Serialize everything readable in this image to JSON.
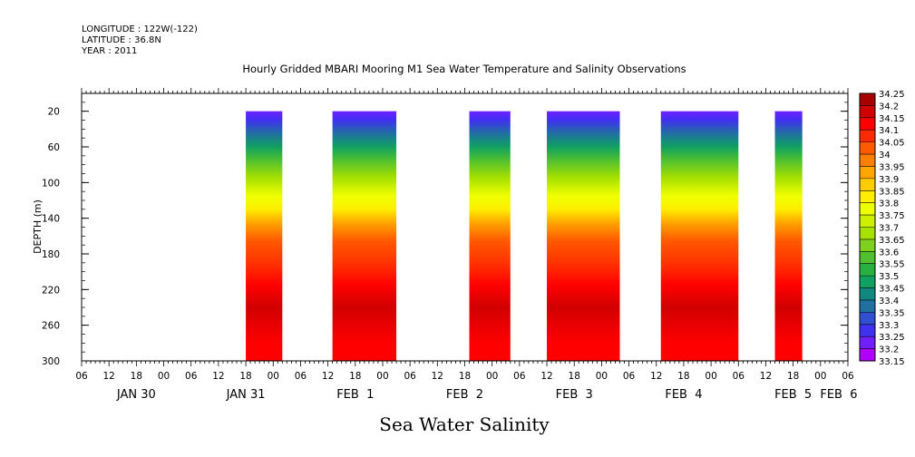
{
  "header": {
    "longitude": "LONGITUDE : 122W(-122)",
    "latitude": "LATITUDE : 36.8N",
    "year": "YEAR : 2011"
  },
  "chart_data": {
    "type": "heatmap",
    "title": "Hourly Gridded MBARI Mooring M1 Sea Water Temperature and Salinity Observations",
    "xlabel": "Sea Water Salinity",
    "ylabel": "DEPTH (m)",
    "x_range_hours": [
      0,
      168
    ],
    "ylim": [
      300,
      0
    ],
    "y_ticks": [
      20,
      60,
      100,
      140,
      180,
      220,
      260,
      300
    ],
    "hour_ticks": [
      "06",
      "12",
      "18",
      "00",
      "06",
      "12",
      "18",
      "00",
      "06",
      "12",
      "18",
      "00",
      "06",
      "12",
      "18",
      "00",
      "06",
      "12",
      "18",
      "00",
      "06",
      "12",
      "18",
      "00",
      "06",
      "12",
      "18",
      "00",
      "06"
    ],
    "date_labels": [
      {
        "label": "JAN 30",
        "hour": 12
      },
      {
        "label": "JAN 31",
        "hour": 36
      },
      {
        "label": "FEB  1",
        "hour": 60
      },
      {
        "label": "FEB  2",
        "hour": 84
      },
      {
        "label": "FEB  3",
        "hour": 108
      },
      {
        "label": "FEB  4",
        "hour": 132
      },
      {
        "label": "FEB  5",
        "hour": 156
      },
      {
        "label": "FEB  6",
        "hour": 166
      }
    ],
    "data_blocks_hours": [
      [
        36,
        44
      ],
      [
        55,
        69
      ],
      [
        85,
        94
      ],
      [
        102,
        118
      ],
      [
        127,
        144
      ],
      [
        152,
        158
      ]
    ],
    "profile": [
      {
        "depth": 20,
        "value": 33.25
      },
      {
        "depth": 30,
        "value": 33.3
      },
      {
        "depth": 45,
        "value": 33.4
      },
      {
        "depth": 60,
        "value": 33.5
      },
      {
        "depth": 75,
        "value": 33.6
      },
      {
        "depth": 95,
        "value": 33.7
      },
      {
        "depth": 115,
        "value": 33.8
      },
      {
        "depth": 130,
        "value": 33.85
      },
      {
        "depth": 145,
        "value": 33.95
      },
      {
        "depth": 165,
        "value": 34.05
      },
      {
        "depth": 195,
        "value": 34.1
      },
      {
        "depth": 215,
        "value": 34.15
      },
      {
        "depth": 240,
        "value": 34.2
      },
      {
        "depth": 280,
        "value": 34.15
      },
      {
        "depth": 300,
        "value": 34.15
      }
    ],
    "colorbar": {
      "labels": [
        "34.25",
        "34.2",
        "34.15",
        "34.1",
        "34.05",
        "34",
        "33.95",
        "33.9",
        "33.85",
        "33.8",
        "33.75",
        "33.7",
        "33.65",
        "33.6",
        "33.55",
        "33.5",
        "33.45",
        "33.4",
        "33.35",
        "33.3",
        "33.25",
        "33.2",
        "33.15"
      ],
      "colors": [
        "#a80000",
        "#d10000",
        "#ff0000",
        "#ff2a00",
        "#ff5a00",
        "#ff8000",
        "#ffa500",
        "#ffcc00",
        "#ffee00",
        "#eeff00",
        "#ccf000",
        "#a8e000",
        "#80d020",
        "#50c030",
        "#28b040",
        "#10a060",
        "#108880",
        "#2070a0",
        "#3050d0",
        "#4030f0",
        "#7020ff",
        "#b000ff"
      ]
    }
  }
}
